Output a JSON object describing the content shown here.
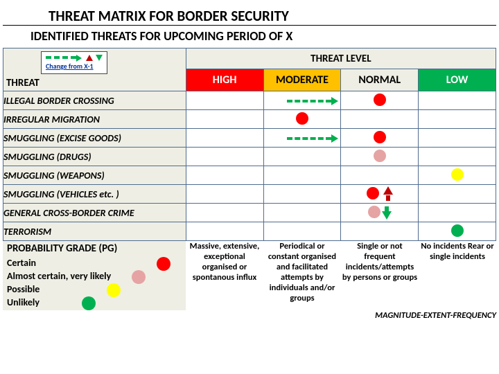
{
  "title_main": "THREAT MATRIX FOR BORDER SECURITY",
  "title_sub": "IDENTIFIED THREATS FOR UPCOMING PERIOD OF X",
  "legend_label": "Change from X-1",
  "header_threat": "THREAT",
  "header_level": "THREAT LEVEL",
  "levels": {
    "high": {
      "label": "HIGH",
      "bg": "#ff0000",
      "fg": "#ffffff"
    },
    "moderate": {
      "label": "MODERATE",
      "bg": "#ffc000",
      "fg": "#000000"
    },
    "normal": {
      "label": "NORMAL",
      "bg": "#eeeee4",
      "fg": "#000000"
    },
    "low": {
      "label": "LOW",
      "bg": "#00b050",
      "fg": "#ffffff"
    }
  },
  "threats": [
    {
      "label": "ILLEGAL BORDER CROSSING"
    },
    {
      "label": "IRREGULAR MIGRATION"
    },
    {
      "label": "SMUGGLING (EXCISE GOODS)"
    },
    {
      "label": "SMUGGLING (DRUGS)"
    },
    {
      "label": "SMUGGLING (WEAPONS)"
    },
    {
      "label": "SMUGGLING (VEHICLES etc. )"
    },
    {
      "label": "GENERAL CROSS-BORDER CRIME"
    },
    {
      "label": "TERRORISM"
    }
  ],
  "colors": {
    "red": "#ff0000",
    "pink": "#e6a3a3",
    "yellow": "#ffff00",
    "green": "#00b050",
    "trend_green": "#00b050",
    "trend_red": "#c00000"
  },
  "cells": [
    {
      "row": 0,
      "col": 2,
      "dot": "red",
      "dashFrom": 1
    },
    {
      "row": 1,
      "col": 1,
      "dot": "red"
    },
    {
      "row": 2,
      "col": 2,
      "dot": "red",
      "dashFrom": 1
    },
    {
      "row": 3,
      "col": 2,
      "dot": "pink"
    },
    {
      "row": 4,
      "col": 3,
      "dot": "yellow"
    },
    {
      "row": 5,
      "col": 2,
      "dot": "red",
      "trend": "up"
    },
    {
      "row": 6,
      "col": 2,
      "dot": "pink",
      "trend": "down"
    },
    {
      "row": 7,
      "col": 3,
      "dot": "green"
    }
  ],
  "pg": {
    "header": "PROBABILITY GRADE (PG)",
    "rows": [
      {
        "label": "Certain",
        "color": "#ff0000"
      },
      {
        "label": "Almost certain, very likely",
        "color": "#e6a3a3"
      },
      {
        "label": "Possible",
        "color": "#ffff00"
      },
      {
        "label": "Unlikely",
        "color": "#00b050"
      }
    ],
    "column_texts": [
      "Massive, extensive, exceptional organised or spontanous influx",
      "Periodical or constant organised and facilitated attempts by individuals and/or groups",
      "Single or not frequent incidents/attempts by persons or groups",
      "No incidents Rear or single incidents"
    ],
    "footer": "MAGNITUDE-EXTENT-FREQUENCY"
  }
}
